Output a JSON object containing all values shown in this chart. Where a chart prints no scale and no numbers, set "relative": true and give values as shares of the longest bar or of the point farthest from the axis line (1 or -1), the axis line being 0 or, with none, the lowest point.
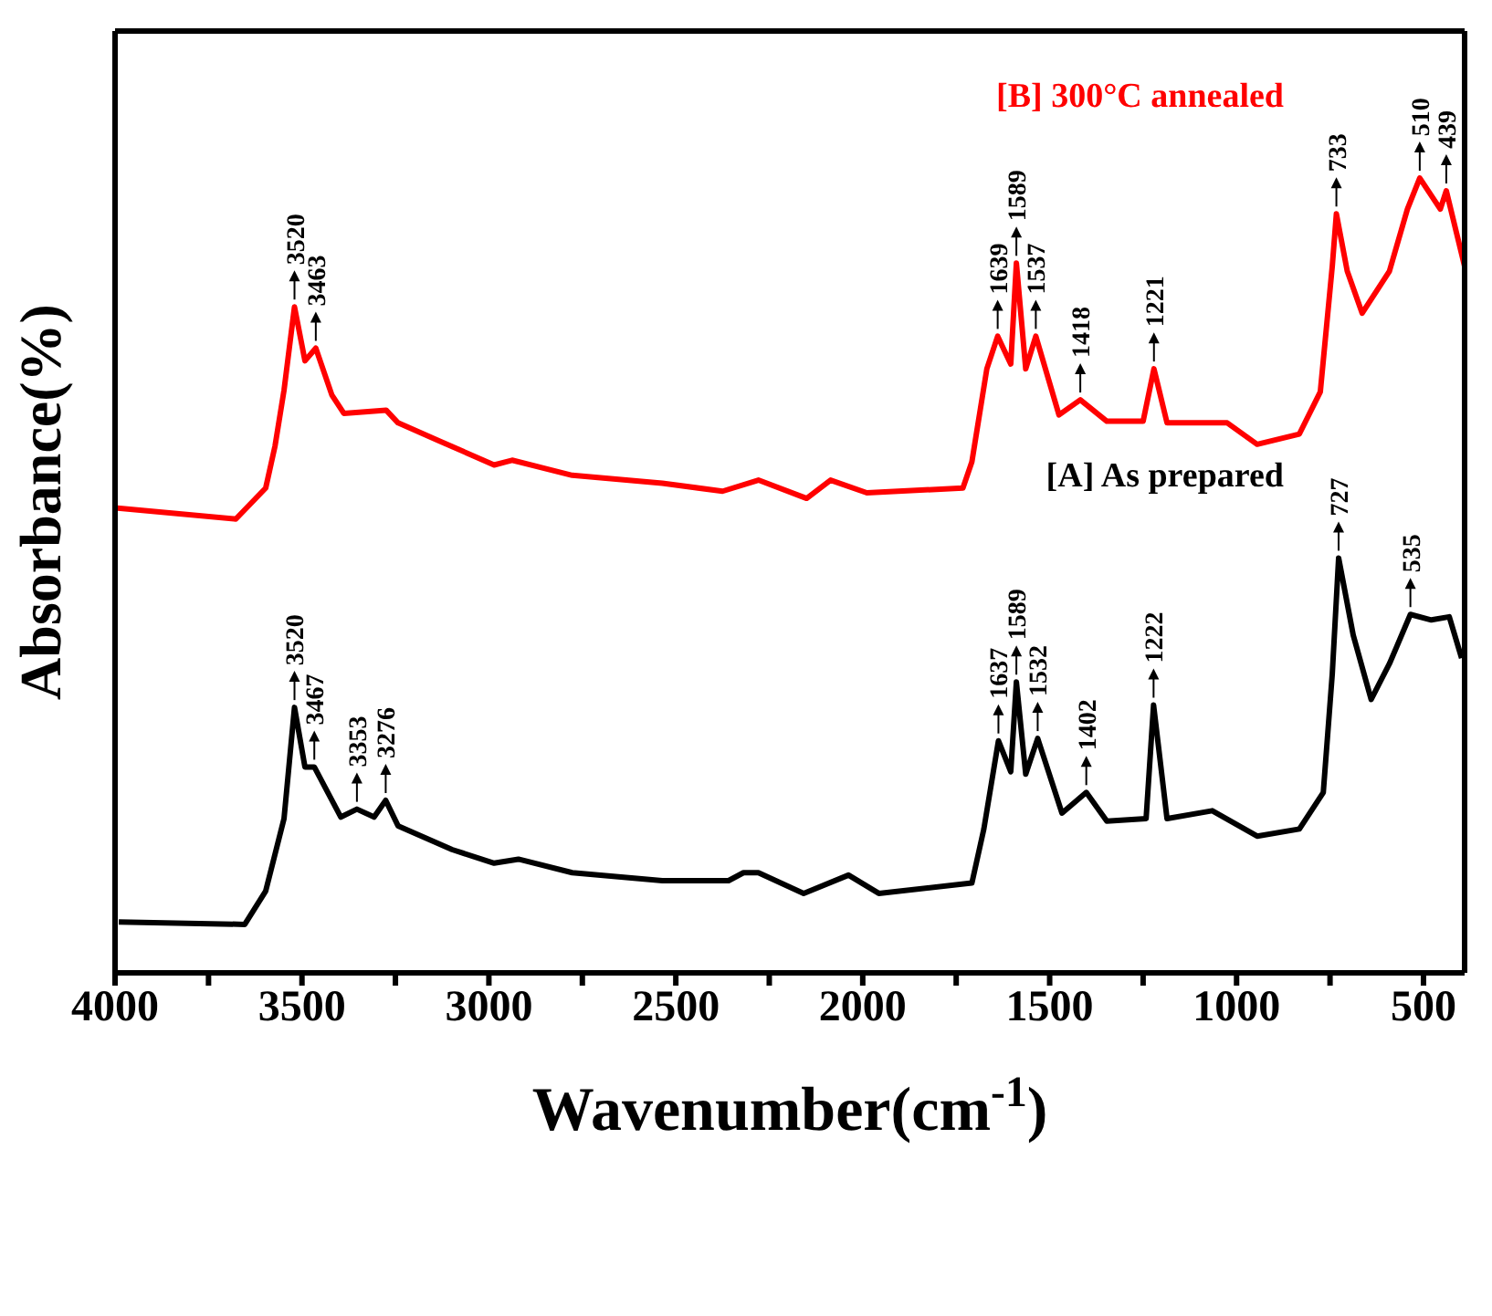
{
  "chart_data": {
    "type": "line",
    "relative": true,
    "xlabel": "Wavenumber(cm$^{-1}$)",
    "ylabel": "Absorbance(%)",
    "xlim": [
      4000,
      390
    ],
    "xticks": [
      4000,
      {
        "value": 3750,
        "label": null
      },
      3500,
      {
        "value": 3250,
        "label": null
      },
      3000,
      {
        "value": 2750,
        "label": null
      },
      2500,
      {
        "value": 2250,
        "label": null
      },
      2000,
      {
        "value": 1750,
        "label": null
      },
      1500,
      {
        "value": 1250,
        "label": null
      },
      1000,
      {
        "value": 750,
        "label": null
      },
      500
    ],
    "marker": "none",
    "line_style": "solid",
    "series": [
      {
        "name": "[B] 300°C annealed",
        "color": "#ff0000",
        "x": [
          4000,
          3677,
          3597,
          3572,
          3548,
          3520,
          3492,
          3463,
          3420,
          3388,
          3275,
          3243,
          3131,
          2986,
          2938,
          2777,
          2536,
          2375,
          2279,
          2150,
          2086,
          1989,
          1732,
          1708,
          1668,
          1639,
          1604,
          1589,
          1564,
          1537,
          1475,
          1418,
          1347,
          1250,
          1221,
          1186,
          1025,
          945,
          832,
          776,
          744,
          733,
          704,
          664,
          591,
          543,
          510,
          455,
          439,
          390
        ],
        "values": [
          0.585,
          0.571,
          0.61,
          0.663,
          0.733,
          0.838,
          0.77,
          0.786,
          0.727,
          0.704,
          0.708,
          0.692,
          0.669,
          0.639,
          0.645,
          0.626,
          0.616,
          0.606,
          0.62,
          0.597,
          0.62,
          0.604,
          0.61,
          0.643,
          0.76,
          0.801,
          0.766,
          0.893,
          0.76,
          0.801,
          0.702,
          0.721,
          0.694,
          0.694,
          0.76,
          0.692,
          0.692,
          0.665,
          0.678,
          0.731,
          0.889,
          0.955,
          0.883,
          0.83,
          0.883,
          0.961,
          1,
          0.961,
          0.984,
          0.889
        ]
      },
      {
        "name": "[A] As prepared",
        "color": "#000000",
        "x": [
          3990,
          3653,
          3597,
          3548,
          3520,
          3492,
          3467,
          3396,
          3353,
          3307,
          3276,
          3243,
          3098,
          2986,
          2921,
          2777,
          2536,
          2359,
          2319,
          2279,
          2158,
          2038,
          1957,
          1708,
          1676,
          1637,
          1604,
          1589,
          1564,
          1532,
          1467,
          1402,
          1347,
          1242,
          1222,
          1186,
          1065,
          945,
          832,
          768,
          744,
          727,
          688,
          640,
          591,
          535,
          479,
          431,
          398
        ],
        "values": [
          0.064,
          0.061,
          0.103,
          0.194,
          0.334,
          0.259,
          0.259,
          0.196,
          0.206,
          0.196,
          0.217,
          0.185,
          0.155,
          0.138,
          0.143,
          0.126,
          0.116,
          0.116,
          0.126,
          0.126,
          0.1,
          0.123,
          0.1,
          0.113,
          0.181,
          0.292,
          0.253,
          0.366,
          0.25,
          0.295,
          0.201,
          0.227,
          0.191,
          0.194,
          0.337,
          0.194,
          0.204,
          0.172,
          0.181,
          0.227,
          0.376,
          0.522,
          0.425,
          0.344,
          0.389,
          0.451,
          0.444,
          0.448,
          0.396
        ]
      }
    ],
    "annotations": [
      {
        "text": "3520",
        "x": 3520,
        "y": 0.838
      },
      {
        "text": "3463",
        "x": 3463,
        "y": 0.786
      },
      {
        "text": "1639",
        "x": 1639,
        "y": 0.801
      },
      {
        "text": "1589",
        "x": 1589,
        "y": 0.893
      },
      {
        "text": "1537",
        "x": 1537,
        "y": 0.801
      },
      {
        "text": "1418",
        "x": 1418,
        "y": 0.721
      },
      {
        "text": "1221",
        "x": 1221,
        "y": 0.76
      },
      {
        "text": "733",
        "x": 733,
        "y": 0.955
      },
      {
        "text": "510",
        "x": 510,
        "y": 1
      },
      {
        "text": "439",
        "x": 439,
        "y": 0.984
      },
      {
        "text": "3520",
        "x": 3520,
        "y": 0.334
      },
      {
        "text": "3467",
        "x": 3467,
        "y": 0.259
      },
      {
        "text": "3353",
        "x": 3353,
        "y": 0.206
      },
      {
        "text": "3276",
        "x": 3276,
        "y": 0.217
      },
      {
        "text": "1637",
        "x": 1637,
        "y": 0.292
      },
      {
        "text": "1589",
        "x": 1589,
        "y": 0.366
      },
      {
        "text": "1532",
        "x": 1532,
        "y": 0.295
      },
      {
        "text": "1402",
        "x": 1402,
        "y": 0.227
      },
      {
        "text": "1222",
        "x": 1222,
        "y": 0.337
      },
      {
        "text": "727",
        "x": 727,
        "y": 0.522
      },
      {
        "text": "535",
        "x": 535,
        "y": 0.451
      }
    ]
  }
}
